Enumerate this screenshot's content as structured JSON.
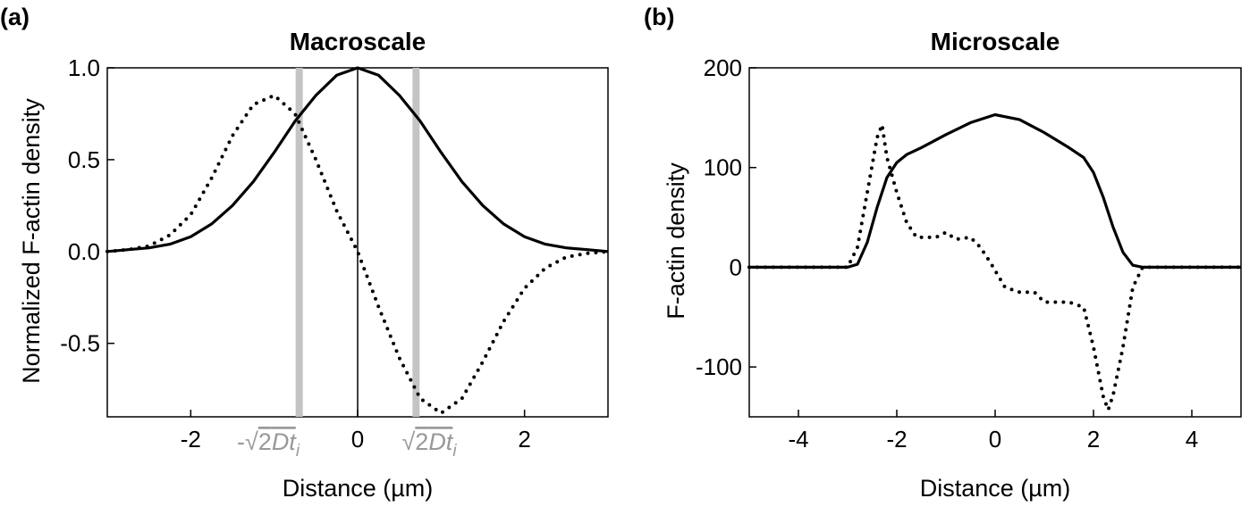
{
  "figure": {
    "panels": [
      {
        "letter": "(a)",
        "title": "Macroscale",
        "xlabel": "Distance (µm)",
        "ylabel": "Normalized F-actin density",
        "annotations": {
          "neg_prefix": "-",
          "root_sign": "√",
          "expr_upright": "2",
          "expr_italic": "Dt",
          "expr_sub": "i"
        }
      },
      {
        "letter": "(b)",
        "title": "Microscale",
        "xlabel": "Distance (µm)",
        "ylabel": "F-actin density"
      }
    ]
  },
  "chart_data": [
    {
      "type": "line",
      "title": "Macroscale",
      "xlabel": "Distance (µm)",
      "ylabel": "Normalized F-actin density",
      "xlim": [
        -3,
        3
      ],
      "ylim": [
        -0.9,
        1.0
      ],
      "xticks": [
        -2,
        0,
        2
      ],
      "xtick_labels": [
        "-2",
        "0",
        "2"
      ],
      "yticks": [
        -0.5,
        0.0,
        0.5,
        1.0
      ],
      "ytick_labels": [
        "-0.5",
        "0.0",
        "0.5",
        "1.0"
      ],
      "grid": false,
      "series": [
        {
          "style": "solid",
          "x": [
            -3.0,
            -2.75,
            -2.5,
            -2.25,
            -2.0,
            -1.75,
            -1.5,
            -1.25,
            -1.0,
            -0.75,
            -0.5,
            -0.25,
            0.0,
            0.25,
            0.5,
            0.75,
            1.0,
            1.25,
            1.5,
            1.75,
            2.0,
            2.25,
            2.5,
            2.75,
            3.0
          ],
          "y": [
            0.0,
            0.01,
            0.02,
            0.04,
            0.08,
            0.15,
            0.25,
            0.38,
            0.54,
            0.71,
            0.85,
            0.96,
            1.0,
            0.96,
            0.85,
            0.71,
            0.54,
            0.38,
            0.25,
            0.15,
            0.08,
            0.04,
            0.02,
            0.01,
            0.0
          ]
        },
        {
          "style": "dotted",
          "x": [
            -3.0,
            -2.75,
            -2.5,
            -2.25,
            -2.0,
            -1.75,
            -1.5,
            -1.25,
            -1.0,
            -0.75,
            -0.5,
            -0.25,
            0.0,
            0.25,
            0.5,
            0.75,
            1.0,
            1.25,
            1.5,
            1.75,
            2.0,
            2.25,
            2.5,
            2.75,
            3.0
          ],
          "y": [
            0.0,
            0.01,
            0.03,
            0.09,
            0.2,
            0.4,
            0.63,
            0.8,
            0.85,
            0.75,
            0.5,
            0.22,
            0.0,
            -0.3,
            -0.58,
            -0.8,
            -0.88,
            -0.8,
            -0.6,
            -0.38,
            -0.2,
            -0.09,
            -0.03,
            -0.01,
            0.0
          ]
        }
      ],
      "vlines": [
        {
          "x": -0.7,
          "color": "#c4c4c4"
        },
        {
          "x": 0.0,
          "color": "#000000"
        },
        {
          "x": 0.7,
          "color": "#c4c4c4"
        }
      ]
    },
    {
      "type": "line",
      "title": "Microscale",
      "xlabel": "Distance (µm)",
      "ylabel": "F-actin density",
      "xlim": [
        -5,
        5
      ],
      "ylim": [
        -150,
        200
      ],
      "xticks": [
        -4,
        -2,
        0,
        2,
        4
      ],
      "xtick_labels": [
        "-4",
        "-2",
        "0",
        "2",
        "4"
      ],
      "yticks": [
        -100,
        0,
        100,
        200
      ],
      "ytick_labels": [
        "-100",
        "0",
        "100",
        "200"
      ],
      "grid": false,
      "series": [
        {
          "style": "solid",
          "x": [
            -5.0,
            -3.0,
            -2.8,
            -2.6,
            -2.4,
            -2.2,
            -2.0,
            -1.8,
            -1.5,
            -1.0,
            -0.5,
            0.0,
            0.5,
            1.0,
            1.5,
            1.8,
            2.0,
            2.2,
            2.4,
            2.6,
            2.8,
            3.0,
            5.0
          ],
          "y": [
            0,
            0,
            3,
            25,
            60,
            90,
            105,
            113,
            120,
            133,
            145,
            153,
            148,
            135,
            120,
            110,
            95,
            70,
            40,
            15,
            2,
            0,
            0
          ]
        },
        {
          "style": "dotted",
          "x": [
            -5.0,
            -3.0,
            -2.8,
            -2.6,
            -2.4,
            -2.3,
            -2.2,
            -2.0,
            -1.8,
            -1.6,
            -1.2,
            -1.0,
            -0.8,
            -0.5,
            -0.3,
            -0.1,
            0.2,
            0.5,
            0.8,
            1.0,
            1.5,
            1.8,
            2.0,
            2.2,
            2.3,
            2.4,
            2.6,
            2.8,
            3.0,
            5.0
          ],
          "y": [
            0,
            0,
            20,
            75,
            130,
            143,
            110,
            75,
            45,
            30,
            30,
            35,
            28,
            30,
            20,
            5,
            -20,
            -25,
            -25,
            -35,
            -35,
            -40,
            -80,
            -130,
            -143,
            -128,
            -80,
            -20,
            0,
            0
          ]
        }
      ]
    }
  ]
}
